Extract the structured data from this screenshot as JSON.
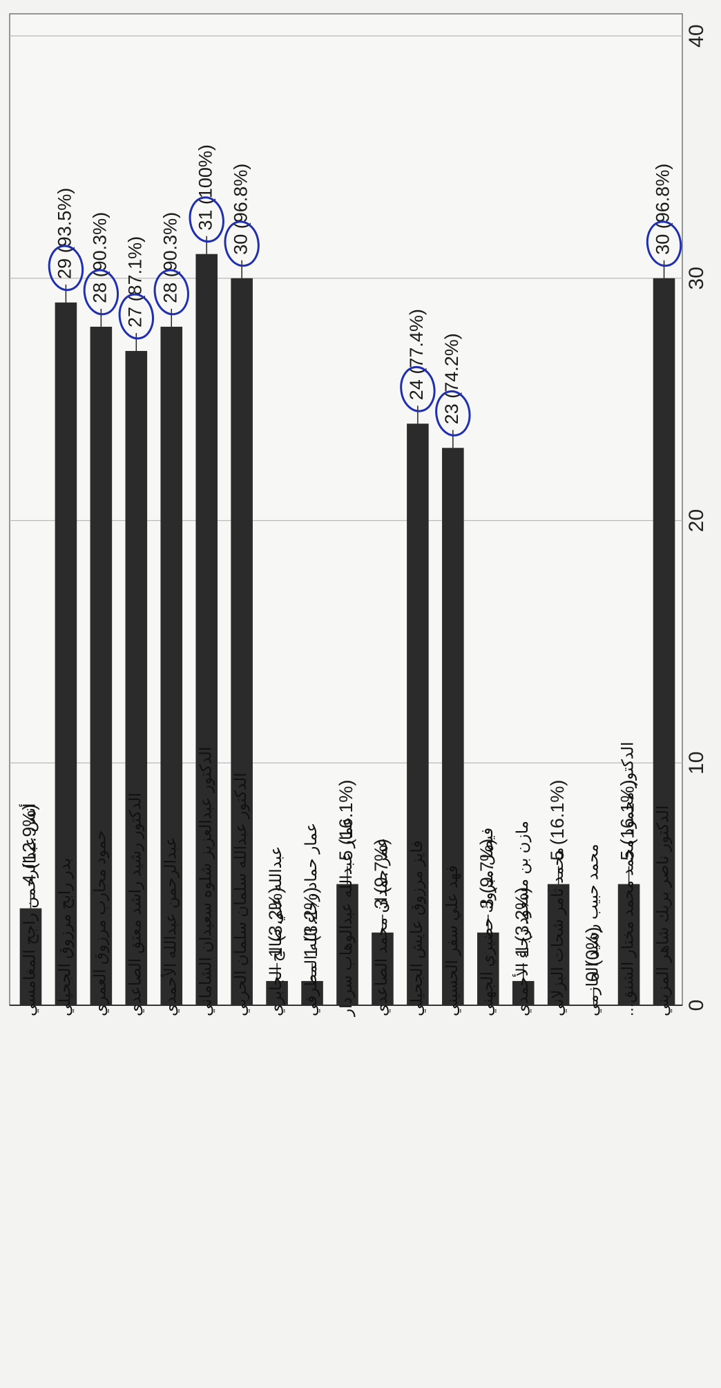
{
  "chart_data": {
    "type": "bar",
    "orientation": "rotated-page",
    "xlim": [
      0,
      40
    ],
    "ticks": [
      0,
      10,
      20,
      30,
      40
    ],
    "grid": true,
    "bar_color": "#2b2b2b",
    "annotation_color": "#1f2fb0",
    "categories": [
      "أنس عبدالرحمن راجح المغامسي",
      "بدر رابح مرزوق الجحيلي",
      "حمود محارب مرزوق العمري",
      "الدكتور رشيد راشد معتق الصاعدي",
      "عبدالرحمن عبدالله الأحمدي",
      "الدكتور عبدالعزيز شلوه سعيدان الشاماني",
      "الدكتور عبدالله سلمان سلمان الحربي",
      "عبدالله علي صالح الجابري",
      "عمار حماد رجاء الله المطرفي",
      "عمار عبدالله عبدالوهاب سردار",
      "عمر حمدان محمد الصاعدي",
      "فايز مرزوق عايش الجحيلي",
      "فهد علي سفر الحسيني",
      "فيصل مبروك حضيري الجهني",
      "مازن بن مسعود رجاء الأحمدي",
      "محمد ثامر شحات البزلاني",
      "محمد حبيب رشيد الحازمي",
      "الدكتور محمود محمد محمد مختار الشنق...",
      "الدكتور ناصر بريك شاهر المزيني"
    ],
    "values": [
      4,
      29,
      28,
      27,
      28,
      31,
      30,
      1,
      1,
      5,
      3,
      24,
      23,
      3,
      1,
      5,
      0,
      5,
      30
    ],
    "labels": [
      "4 (12.9%)",
      "29 (93.5%)",
      "28 (90.3%)",
      "27 (87.1%)",
      "28 (90.3%)",
      "31 (100%)",
      "30 (96.8%)",
      "1 (3.2%)",
      "1 (3.2%)",
      "5 (16.1%)",
      "3 (9.7%)",
      "24 (77.4%)",
      "23 (74.2%)",
      "3 (9.7%)",
      "1 (3.2%)",
      "5 (16.1%)",
      "0 (0%)",
      "5 (16.1%)",
      "30 (96.8%)"
    ],
    "circled": [
      1,
      2,
      3,
      4,
      5,
      6,
      11,
      12,
      18
    ]
  }
}
